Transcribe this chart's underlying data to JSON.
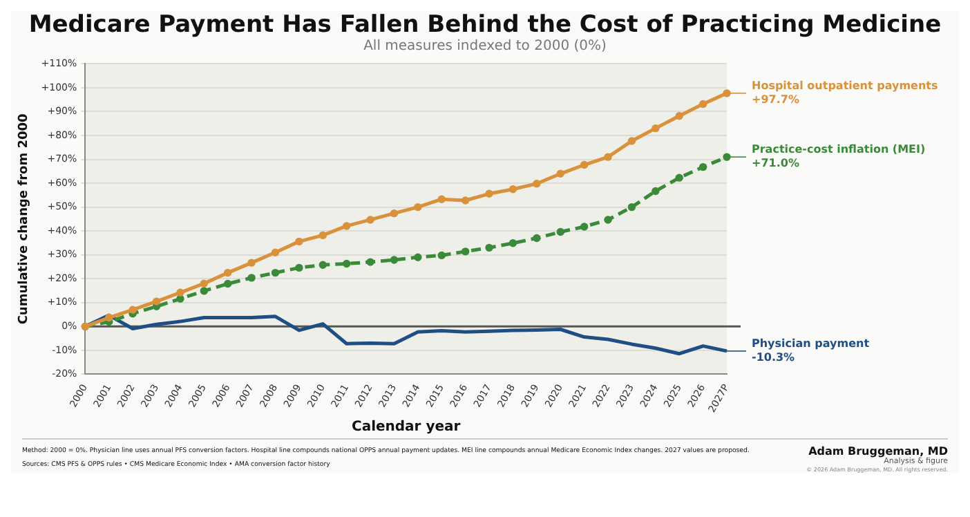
{
  "chart_data": {
    "type": "line",
    "title": "Medicare Payment Has Fallen Behind the Cost of Practicing Medicine",
    "subtitle": "All measures indexed to 2000 (0%)",
    "xlabel": "Calendar year",
    "ylabel": "Cumulative change from 2000",
    "categories": [
      "2000",
      "2001",
      "2002",
      "2003",
      "2004",
      "2005",
      "2006",
      "2007",
      "2008",
      "2009",
      "2010",
      "2011",
      "2012",
      "2013",
      "2014",
      "2015",
      "2016",
      "2017",
      "2018",
      "2019",
      "2020",
      "2021",
      "2022",
      "2023",
      "2024",
      "2025",
      "2026",
      "2027P"
    ],
    "series": [
      {
        "name": "Hospital outpatient payments",
        "color": "#d9913c",
        "marker": "circle",
        "line_style": "solid",
        "values": [
          0,
          3.7,
          7,
          10.5,
          14.2,
          18,
          22.5,
          26.7,
          31,
          35.6,
          38.2,
          42.1,
          44.7,
          47.4,
          50,
          53.3,
          52.8,
          55.6,
          57.5,
          59.8,
          64,
          67.7,
          71,
          77.7,
          83,
          88.2,
          93.2,
          97.7
        ],
        "value_labels": [
          null,
          null,
          null,
          null,
          null,
          null,
          null,
          null,
          null,
          null,
          null,
          null,
          null,
          null,
          null,
          null,
          null,
          null,
          null,
          null,
          null,
          null,
          null,
          null,
          null,
          null,
          null,
          "+97.7%"
        ]
      },
      {
        "name": "Practice-cost inflation (MEI)",
        "color": "#3a8a3a",
        "marker": "circle",
        "line_style": "dashed",
        "values": [
          0,
          2,
          5.4,
          8.4,
          11.6,
          14.9,
          17.9,
          20.4,
          22.5,
          24.6,
          25.8,
          26.3,
          27,
          27.9,
          29,
          29.8,
          31.4,
          33,
          34.9,
          37,
          39.6,
          41.8,
          44.7,
          50,
          56.7,
          62.3,
          66.8,
          71
        ],
        "value_labels": [
          null,
          null,
          null,
          null,
          null,
          null,
          null,
          null,
          null,
          null,
          null,
          null,
          null,
          null,
          null,
          null,
          null,
          null,
          null,
          null,
          null,
          null,
          null,
          null,
          null,
          null,
          null,
          "+71.0%"
        ]
      },
      {
        "name": "Physician payment",
        "color": "#1f4e85",
        "marker": "none",
        "line_style": "solid",
        "values": [
          0,
          4.7,
          -0.9,
          0.9,
          2.1,
          3.7,
          3.7,
          3.7,
          4.2,
          -1.6,
          1.1,
          -7.2,
          -7,
          -7.2,
          -2.3,
          -1.8,
          -2.3,
          -2,
          -1.6,
          -1.5,
          -1.2,
          -4.4,
          -5.4,
          -7.4,
          -9.1,
          -11.4,
          -8.2,
          -10.3
        ],
        "value_labels": [
          null,
          null,
          null,
          null,
          null,
          null,
          null,
          null,
          null,
          null,
          null,
          null,
          null,
          null,
          null,
          null,
          null,
          null,
          null,
          null,
          null,
          null,
          null,
          null,
          null,
          null,
          null,
          "-10.3%"
        ]
      }
    ],
    "ylim": [
      -20,
      110
    ],
    "yticks": [
      {
        "value": -20,
        "label": "-20%"
      },
      {
        "value": -10,
        "label": "-10%"
      },
      {
        "value": 0,
        "label": "0%"
      },
      {
        "value": 10,
        "label": "+10%"
      },
      {
        "value": 20,
        "label": "+20%"
      },
      {
        "value": 30,
        "label": "+30%"
      },
      {
        "value": 40,
        "label": "+40%"
      },
      {
        "value": 50,
        "label": "+50%"
      },
      {
        "value": 60,
        "label": "+60%"
      },
      {
        "value": 70,
        "label": "+70%"
      },
      {
        "value": 80,
        "label": "+80%"
      },
      {
        "value": 90,
        "label": "+90%"
      },
      {
        "value": 100,
        "label": "+100%"
      },
      {
        "value": 110,
        "label": "+110%"
      }
    ],
    "grid": "y",
    "legend": false,
    "ref_lines": [
      {
        "axis": "y",
        "value": 0,
        "color": "#555555"
      }
    ],
    "bands": [
      {
        "axis": "x",
        "from": "2000",
        "to": "2027P",
        "color": "#efefe9"
      }
    ],
    "annotations": [
      "Method: 2000 = 0%. Physician line uses annual PFS conversion factors. Hospital line compounds national OPPS annual payment updates. MEI line compounds annual Medicare Economic Index changes. 2027 values are proposed.",
      "Sources: CMS PFS & OPPS rules • CMS Medicare Economic Index • AMA conversion factor history",
      "Adam Bruggeman, MD",
      "Analysis & figure",
      "© 2026 Adam Bruggeman, MD. All rights reserved."
    ]
  }
}
